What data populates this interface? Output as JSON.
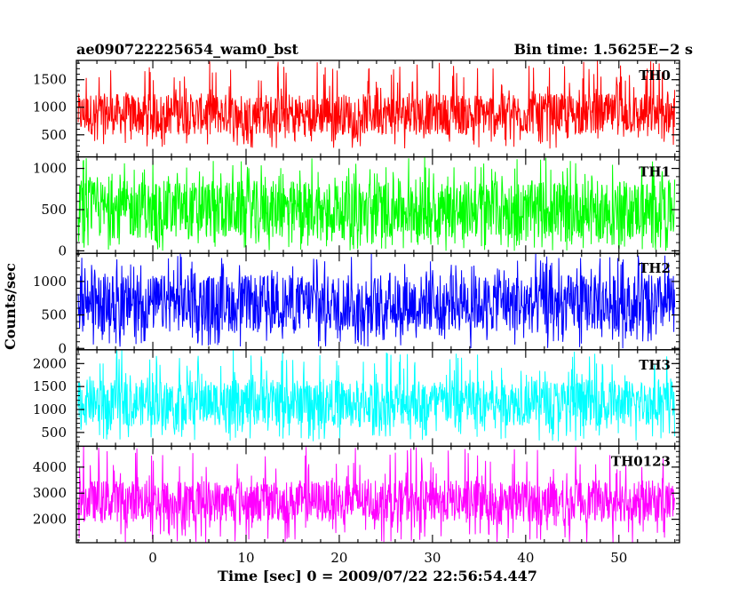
{
  "header": {
    "title": "ae090722225654_wam0_bst",
    "bin_time": "Bin time: 1.5625E−2 s"
  },
  "axes": {
    "xlabel": "Time [sec] 0 = 2009/07/22 22:56:54.447",
    "ylabel": "Counts/sec"
  },
  "chart_data": {
    "type": "line",
    "x_range": [
      -8.2,
      56.5
    ],
    "x_ticks": [
      0,
      10,
      20,
      30,
      40,
      50
    ],
    "x_data_span": [
      -8.0,
      56.0
    ],
    "bin_time_s": 0.015625,
    "grid": false,
    "panels": [
      {
        "name": "TH0",
        "color": "#ff0000",
        "ylim": [
          100,
          1850
        ],
        "yticks": [
          500,
          1000,
          1500
        ],
        "series_band": {
          "min": 250,
          "low": 500,
          "high": 1250,
          "max": 1850
        }
      },
      {
        "name": "TH1",
        "color": "#00ff00",
        "ylim": [
          -30,
          1140
        ],
        "yticks": [
          0,
          500,
          1000
        ],
        "series_band": {
          "min": 0,
          "low": 150,
          "high": 850,
          "max": 1140
        }
      },
      {
        "name": "TH2",
        "color": "#0000ff",
        "ylim": [
          -20,
          1420
        ],
        "yticks": [
          0,
          500,
          1000
        ],
        "series_band": {
          "min": 0,
          "low": 250,
          "high": 1100,
          "max": 1420
        }
      },
      {
        "name": "TH3",
        "color": "#00ffff",
        "ylim": [
          200,
          2300
        ],
        "yticks": [
          500,
          1000,
          1500,
          2000
        ],
        "series_band": {
          "min": 300,
          "low": 650,
          "high": 1650,
          "max": 2300
        }
      },
      {
        "name": "TH0123",
        "color": "#ff00ff",
        "ylim": [
          1100,
          4800
        ],
        "yticks": [
          2000,
          3000,
          4000
        ],
        "series_band": {
          "min": 1100,
          "low": 1900,
          "high": 3500,
          "max": 4800
        }
      }
    ]
  }
}
